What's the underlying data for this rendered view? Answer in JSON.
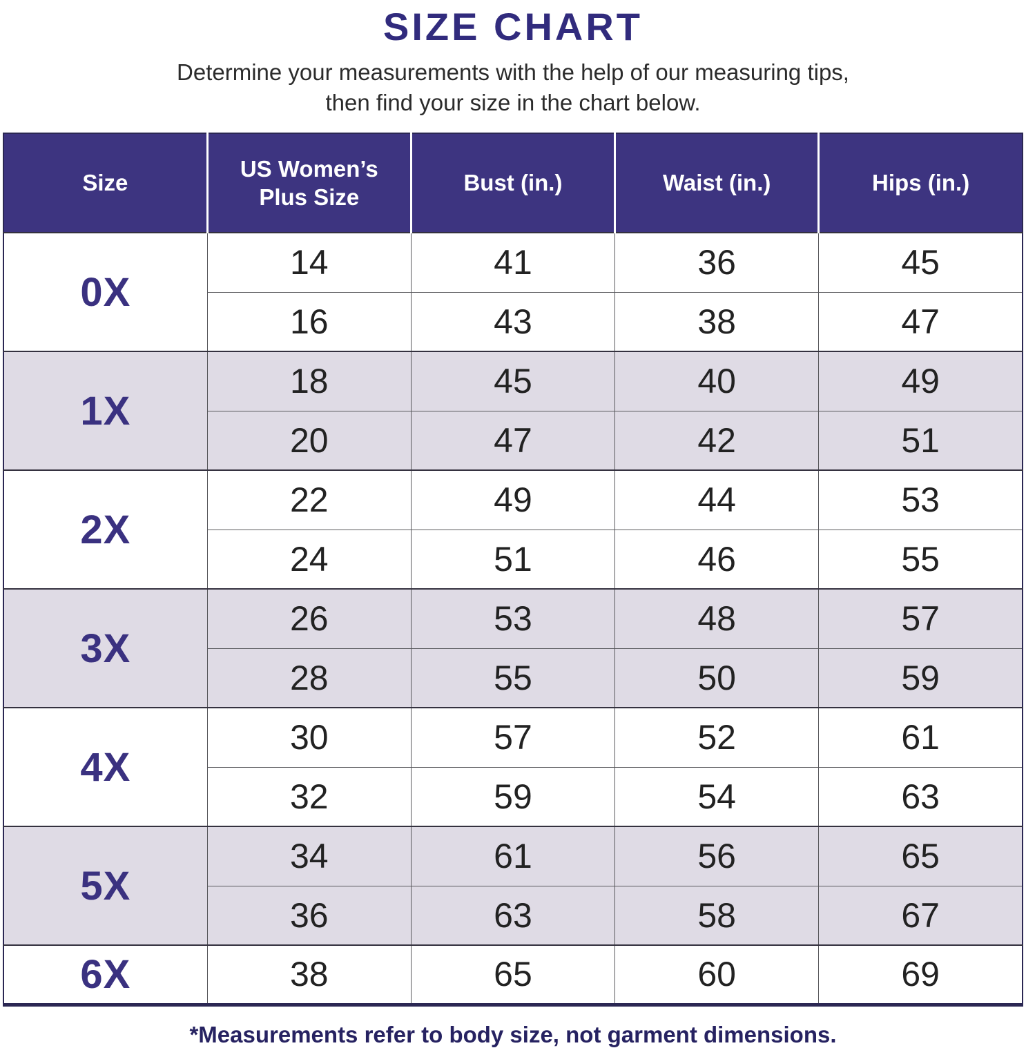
{
  "title": "SIZE CHART",
  "subtitle": {
    "line1": "Determine your measurements with the help of our measuring tips,",
    "line2": "then find your size in the chart below."
  },
  "footnote": "*Measurements refer to body size, not garment dimensions.",
  "colors": {
    "title": "#312b7d",
    "header_bg": "#3d3480",
    "header_text": "#ffffff",
    "shaded_row": "#dfdbe5",
    "size_label": "#3a3180",
    "grid_line": "#57575b",
    "group_line": "#34313f",
    "outer_border": "#2b2753",
    "footnote": "#262261",
    "data_text": "#222222"
  },
  "table": {
    "headers": [
      "Size",
      "US Women’s Plus Size",
      "Bust (in.)",
      "Waist (in.)",
      "Hips (in.)"
    ],
    "groups": [
      {
        "size": "0X",
        "shaded": false,
        "rows": [
          [
            14,
            41,
            36,
            45
          ],
          [
            16,
            43,
            38,
            47
          ]
        ]
      },
      {
        "size": "1X",
        "shaded": true,
        "rows": [
          [
            18,
            45,
            40,
            49
          ],
          [
            20,
            47,
            42,
            51
          ]
        ]
      },
      {
        "size": "2X",
        "shaded": false,
        "rows": [
          [
            22,
            49,
            44,
            53
          ],
          [
            24,
            51,
            46,
            55
          ]
        ]
      },
      {
        "size": "3X",
        "shaded": true,
        "rows": [
          [
            26,
            53,
            48,
            57
          ],
          [
            28,
            55,
            50,
            59
          ]
        ]
      },
      {
        "size": "4X",
        "shaded": false,
        "rows": [
          [
            30,
            57,
            52,
            61
          ],
          [
            32,
            59,
            54,
            63
          ]
        ]
      },
      {
        "size": "5X",
        "shaded": true,
        "rows": [
          [
            34,
            61,
            56,
            65
          ],
          [
            36,
            63,
            58,
            67
          ]
        ]
      },
      {
        "size": "6X",
        "shaded": false,
        "rows": [
          [
            38,
            65,
            60,
            69
          ]
        ]
      }
    ]
  },
  "chart_data": {
    "type": "table",
    "title": "SIZE CHART",
    "columns": [
      "Size",
      "US Women’s Plus Size",
      "Bust (in.)",
      "Waist (in.)",
      "Hips (in.)"
    ],
    "rows": [
      [
        "0X",
        14,
        41,
        36,
        45
      ],
      [
        "0X",
        16,
        43,
        38,
        47
      ],
      [
        "1X",
        18,
        45,
        40,
        49
      ],
      [
        "1X",
        20,
        47,
        42,
        51
      ],
      [
        "2X",
        22,
        49,
        44,
        53
      ],
      [
        "2X",
        24,
        51,
        46,
        55
      ],
      [
        "3X",
        26,
        53,
        48,
        57
      ],
      [
        "3X",
        28,
        55,
        50,
        59
      ],
      [
        "4X",
        30,
        57,
        52,
        61
      ],
      [
        "4X",
        32,
        59,
        54,
        63
      ],
      [
        "5X",
        34,
        61,
        56,
        65
      ],
      [
        "5X",
        36,
        63,
        58,
        67
      ],
      [
        "6X",
        38,
        65,
        60,
        69
      ]
    ],
    "notes": "*Measurements refer to body size, not garment dimensions."
  }
}
